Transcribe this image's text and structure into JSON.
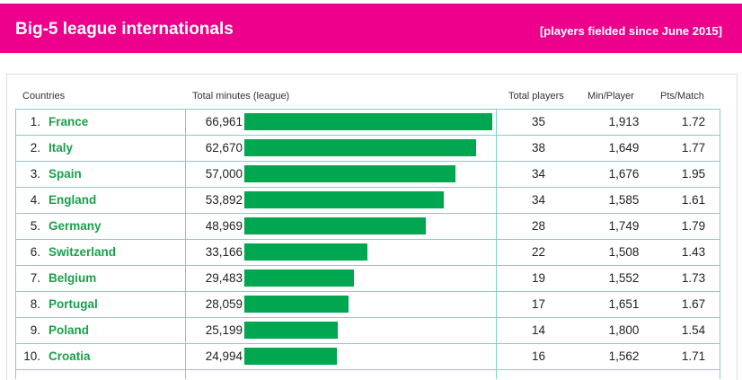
{
  "header": {
    "title": "Big-5 league internationals",
    "subtitle": "[players fielded since June 2015]"
  },
  "columns": {
    "countries": "Countries",
    "total_minutes": "Total minutes (league)",
    "total_players": "Total players",
    "min_per_player": "Min/Player",
    "pts_per_match": "Pts/Match"
  },
  "rows": [
    {
      "rank": "1.",
      "country": "France",
      "minutes": "66,961",
      "players": "35",
      "min_player": "1,913",
      "pts": "1.72"
    },
    {
      "rank": "2.",
      "country": "Italy",
      "minutes": "62,670",
      "players": "38",
      "min_player": "1,649",
      "pts": "1.77"
    },
    {
      "rank": "3.",
      "country": "Spain",
      "minutes": "57,000",
      "players": "34",
      "min_player": "1,676",
      "pts": "1.95"
    },
    {
      "rank": "4.",
      "country": "England",
      "minutes": "53,892",
      "players": "34",
      "min_player": "1,585",
      "pts": "1.61"
    },
    {
      "rank": "5.",
      "country": "Germany",
      "minutes": "48,969",
      "players": "28",
      "min_player": "1,749",
      "pts": "1.79"
    },
    {
      "rank": "6.",
      "country": "Switzerland",
      "minutes": "33,166",
      "players": "22",
      "min_player": "1,508",
      "pts": "1.43"
    },
    {
      "rank": "7.",
      "country": "Belgium",
      "minutes": "29,483",
      "players": "19",
      "min_player": "1,552",
      "pts": "1.73"
    },
    {
      "rank": "8.",
      "country": "Portugal",
      "minutes": "28,059",
      "players": "17",
      "min_player": "1,651",
      "pts": "1.67"
    },
    {
      "rank": "9.",
      "country": "Poland",
      "minutes": "25,199",
      "players": "14",
      "min_player": "1,800",
      "pts": "1.54"
    },
    {
      "rank": "10.",
      "country": "Croatia",
      "minutes": "24,994",
      "players": "16",
      "min_player": "1,562",
      "pts": "1.71"
    }
  ],
  "chart_data": {
    "type": "bar",
    "categories": [
      "France",
      "Italy",
      "Spain",
      "England",
      "Germany",
      "Switzerland",
      "Belgium",
      "Portugal",
      "Poland",
      "Croatia"
    ],
    "values": [
      66961,
      62670,
      57000,
      53892,
      48969,
      33166,
      29483,
      28059,
      25199,
      24994
    ],
    "title": "Big-5 league internationals",
    "subtitle": "[players fielded since June 2015]",
    "ylabel": "Total minutes (league)",
    "xlabel": "",
    "orientation": "horizontal",
    "grid": false
  },
  "colors": {
    "banner": "#ec008c",
    "bar": "#00a650",
    "country_text": "#1aa04a",
    "rule": "#7fd1c3"
  }
}
